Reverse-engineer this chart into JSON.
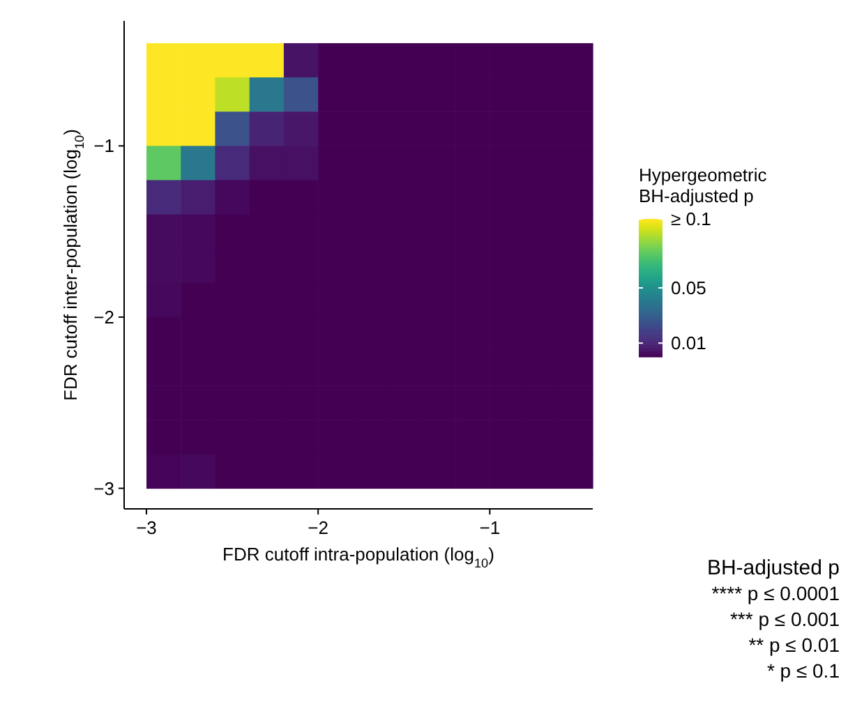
{
  "chart_data": {
    "type": "heatmap",
    "xlabel": "FDR cutoff intra-population (log$_{10}$)",
    "ylabel": "FDR cutoff inter-population (log$_{10}$)",
    "legend_title": "Hypergeometric\nBH-adjusted p",
    "x": [
      -2.9,
      -2.7,
      -2.5,
      -2.3,
      -2.1,
      -1.9,
      -1.7,
      -1.5,
      -1.3,
      -1.1,
      -0.9,
      -0.7,
      -0.5
    ],
    "y": [
      -0.5,
      -0.7,
      -0.9,
      -1.1,
      -1.3,
      -1.5,
      -1.7,
      -1.9,
      -2.1,
      -2.3,
      -2.5,
      -2.7,
      -2.9
    ],
    "xlim": [
      -3.13,
      -0.4
    ],
    "ylim": [
      -3.12,
      -0.27
    ],
    "xticks": [
      -3,
      -2,
      -1
    ],
    "yticks": [
      -3,
      -2,
      -1
    ],
    "cells": [
      [
        0.1,
        0.1,
        0.1,
        0.1,
        0.005,
        0,
        0,
        0,
        0,
        0,
        0,
        0,
        0
      ],
      [
        0.1,
        0.1,
        0.09,
        0.04,
        0.025,
        0,
        0,
        0,
        0,
        0,
        0,
        0,
        0
      ],
      [
        0.1,
        0.1,
        0.025,
        0.01,
        0.006,
        0,
        0,
        0,
        0,
        0,
        0,
        0,
        0
      ],
      [
        0.075,
        0.04,
        0.012,
        0.004,
        0.004,
        0,
        0,
        0,
        0,
        0,
        0,
        0,
        0
      ],
      [
        0.012,
        0.008,
        0.002,
        0,
        0,
        0,
        0,
        0,
        0,
        0,
        0,
        0,
        0
      ],
      [
        0.003,
        0.002,
        0,
        0,
        0,
        0,
        0,
        0,
        0,
        0,
        0,
        0,
        0
      ],
      [
        0.003,
        0.002,
        0,
        0,
        0,
        0,
        0,
        0,
        0,
        0,
        0,
        0,
        0
      ],
      [
        0.002,
        0,
        0,
        0,
        0,
        0,
        0,
        0,
        0,
        0,
        0,
        0,
        0
      ],
      [
        0,
        0,
        0,
        0,
        0,
        0,
        0,
        0,
        0,
        0,
        0,
        0,
        0
      ],
      [
        0,
        0,
        0,
        0,
        0,
        0,
        0,
        0,
        0,
        0,
        0,
        0,
        0
      ],
      [
        0,
        0,
        0,
        0,
        0,
        0,
        0,
        0,
        0,
        0,
        0,
        0,
        0
      ],
      [
        0,
        0,
        0,
        0,
        0,
        0,
        0,
        0,
        0,
        0,
        0,
        0,
        0
      ],
      [
        0.001,
        0.002,
        0,
        0,
        0,
        0,
        0,
        0,
        0,
        0,
        0,
        0,
        0
      ]
    ],
    "clim": [
      0,
      0.1
    ],
    "cticks": [
      {
        "value": 0.1,
        "label": "≥ 0.1"
      },
      0.05,
      0.01
    ],
    "annotations": [
      "BH-adjusted p",
      "**** p ≤ 0.0001",
      "*** p ≤ 0.001",
      "** p ≤ 0.01",
      "* p ≤ 0.1"
    ]
  }
}
